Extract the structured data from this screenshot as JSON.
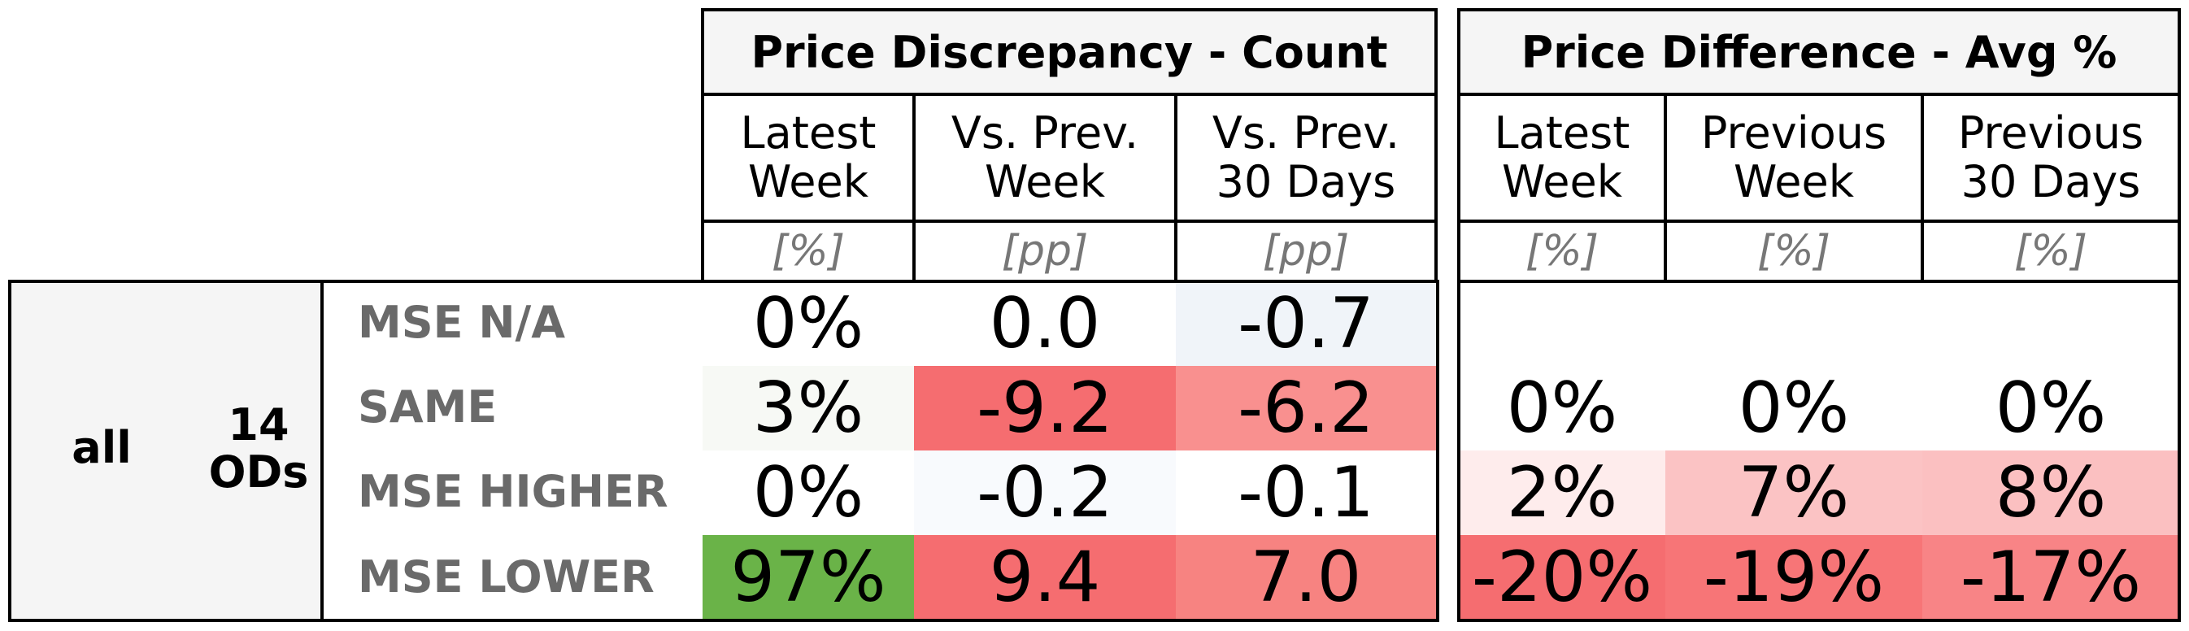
{
  "group": {
    "all_label": "all",
    "ods_label": "14\nODs"
  },
  "tables": [
    {
      "title": "Price Discrepancy - Count",
      "columns": [
        {
          "label": "Latest\nWeek",
          "unit": "[%]"
        },
        {
          "label": "Vs. Prev.\nWeek",
          "unit": "[pp]"
        },
        {
          "label": "Vs. Prev.\n30 Days",
          "unit": "[pp]"
        }
      ]
    },
    {
      "title": "Price Difference - Avg %",
      "columns": [
        {
          "label": "Latest\nWeek",
          "unit": "[%]"
        },
        {
          "label": "Previous\nWeek",
          "unit": "[%]"
        },
        {
          "label": "Previous\n30 Days",
          "unit": "[%]"
        }
      ]
    }
  ],
  "chart_data": {
    "type": "table",
    "rows": [
      "MSE N/A",
      "SAME",
      "MSE HIGHER",
      "MSE LOWER"
    ],
    "count": [
      {
        "row": "MSE N/A",
        "latest": "0%",
        "vs_prev_week": "0.0",
        "vs_prev_30": "-0.7"
      },
      {
        "row": "SAME",
        "latest": "3%",
        "vs_prev_week": "-9.2",
        "vs_prev_30": "-6.2"
      },
      {
        "row": "MSE HIGHER",
        "latest": "0%",
        "vs_prev_week": "-0.2",
        "vs_prev_30": "-0.1"
      },
      {
        "row": "MSE LOWER",
        "latest": "97%",
        "vs_prev_week": "9.4",
        "vs_prev_30": "7.0"
      }
    ],
    "avg_pct": [
      {
        "row": "MSE N/A",
        "latest": "",
        "prev_week": "",
        "prev_30": ""
      },
      {
        "row": "SAME",
        "latest": "0%",
        "prev_week": "0%",
        "prev_30": "0%"
      },
      {
        "row": "MSE HIGHER",
        "latest": "2%",
        "prev_week": "7%",
        "prev_30": "8%"
      },
      {
        "row": "MSE LOWER",
        "latest": "-20%",
        "prev_week": "-19%",
        "prev_30": "-17%"
      }
    ],
    "colors": {
      "count": [
        [
          "#ffffff",
          "#ffffff",
          "#f0f4f9"
        ],
        [
          "#f7f9f5",
          "#f56d70",
          "#f9908f"
        ],
        [
          "#ffffff",
          "#f8fafd",
          "#ffffff"
        ],
        [
          "#6ab348",
          "#f56d70",
          "#f78381"
        ]
      ],
      "avg_pct": [
        [
          "#ffffff",
          "#ffffff",
          "#ffffff"
        ],
        [
          "#ffffff",
          "#ffffff",
          "#ffffff"
        ],
        [
          "#feecec",
          "#fbc3c4",
          "#fbc0c1"
        ],
        [
          "#f56d70",
          "#f77577",
          "#f88486"
        ]
      ]
    }
  }
}
